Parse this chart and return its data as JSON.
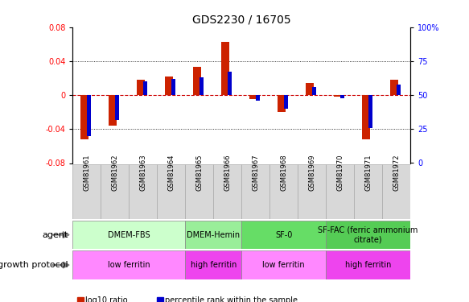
{
  "title": "GDS2230 / 16705",
  "samples": [
    "GSM81961",
    "GSM81962",
    "GSM81963",
    "GSM81964",
    "GSM81965",
    "GSM81966",
    "GSM81967",
    "GSM81968",
    "GSM81969",
    "GSM81970",
    "GSM81971",
    "GSM81972"
  ],
  "log10_ratio": [
    -0.052,
    -0.036,
    0.018,
    0.022,
    0.033,
    0.063,
    -0.005,
    -0.02,
    0.014,
    -0.002,
    -0.052,
    0.018
  ],
  "percentile_rank": [
    20,
    32,
    60,
    62,
    63,
    67,
    46,
    40,
    56,
    48,
    26,
    58
  ],
  "ylim": [
    -0.08,
    0.08
  ],
  "yticks_left": [
    -0.08,
    -0.04,
    0,
    0.04,
    0.08
  ],
  "yticks_right_vals": [
    0,
    25,
    50,
    75,
    100
  ],
  "yticks_right_mapped": [
    -0.08,
    -0.04,
    0.0,
    0.04,
    0.08
  ],
  "agent_groups": [
    {
      "label": "DMEM-FBS",
      "start": 0,
      "end": 4,
      "color": "#ccffcc"
    },
    {
      "label": "DMEM-Hemin",
      "start": 4,
      "end": 6,
      "color": "#99ee99"
    },
    {
      "label": "SF-0",
      "start": 6,
      "end": 9,
      "color": "#66dd66"
    },
    {
      "label": "SF-FAC (ferric ammonium\ncitrate)",
      "start": 9,
      "end": 12,
      "color": "#55cc55"
    }
  ],
  "protocol_groups": [
    {
      "label": "low ferritin",
      "start": 0,
      "end": 4,
      "color": "#ff88ff"
    },
    {
      "label": "high ferritin",
      "start": 4,
      "end": 6,
      "color": "#ee44ee"
    },
    {
      "label": "low ferritin",
      "start": 6,
      "end": 9,
      "color": "#ff88ff"
    },
    {
      "label": "high ferritin",
      "start": 9,
      "end": 12,
      "color": "#ee44ee"
    }
  ],
  "bar_color_red": "#cc2200",
  "bar_color_blue": "#0000cc",
  "title_fontsize": 10,
  "tick_fontsize": 7,
  "label_fontsize": 8,
  "sample_box_color": "#d8d8d8",
  "sample_box_edge": "#aaaaaa"
}
